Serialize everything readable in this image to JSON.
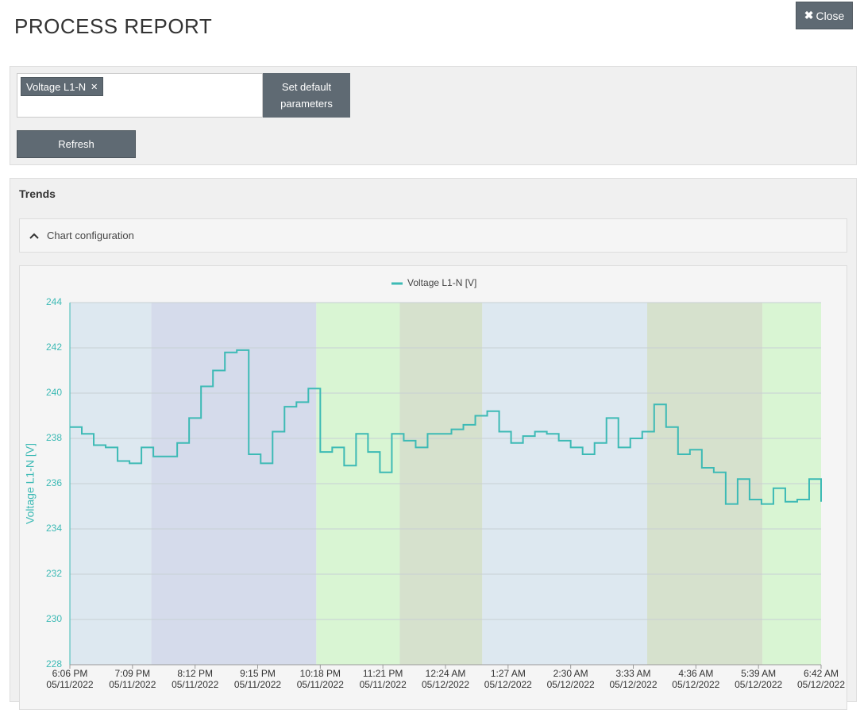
{
  "header": {
    "title": "PROCESS REPORT",
    "close": "Close"
  },
  "filters": {
    "tag": "Voltage L1-N",
    "set_default": "Set default parameters",
    "refresh": "Refresh"
  },
  "trends": {
    "title": "Trends",
    "config": "Chart configuration"
  },
  "chart_data": {
    "type": "line",
    "step": true,
    "x": [
      "2022-05-11T18:06",
      "2022-05-11T18:18",
      "2022-05-11T18:30",
      "2022-05-11T18:42",
      "2022-05-11T18:54",
      "2022-05-11T19:06",
      "2022-05-11T19:18",
      "2022-05-11T19:30",
      "2022-05-11T19:42",
      "2022-05-11T19:54",
      "2022-05-11T20:06",
      "2022-05-11T20:18",
      "2022-05-11T20:30",
      "2022-05-11T20:42",
      "2022-05-11T20:54",
      "2022-05-11T21:06",
      "2022-05-11T21:18",
      "2022-05-11T21:30",
      "2022-05-11T21:42",
      "2022-05-11T21:54",
      "2022-05-11T22:06",
      "2022-05-11T22:18",
      "2022-05-11T22:30",
      "2022-05-11T22:42",
      "2022-05-11T22:54",
      "2022-05-11T23:06",
      "2022-05-11T23:18",
      "2022-05-11T23:30",
      "2022-05-11T23:42",
      "2022-05-11T23:54",
      "2022-05-12T00:06",
      "2022-05-12T00:18",
      "2022-05-12T00:30",
      "2022-05-12T00:42",
      "2022-05-12T00:54",
      "2022-05-12T01:06",
      "2022-05-12T01:18",
      "2022-05-12T01:30",
      "2022-05-12T01:42",
      "2022-05-12T01:54",
      "2022-05-12T02:06",
      "2022-05-12T02:18",
      "2022-05-12T02:30",
      "2022-05-12T02:42",
      "2022-05-12T02:54",
      "2022-05-12T03:06",
      "2022-05-12T03:18",
      "2022-05-12T03:30",
      "2022-05-12T03:42",
      "2022-05-12T03:54",
      "2022-05-12T04:06",
      "2022-05-12T04:18",
      "2022-05-12T04:30",
      "2022-05-12T04:42",
      "2022-05-12T04:54",
      "2022-05-12T05:06",
      "2022-05-12T05:18",
      "2022-05-12T05:30",
      "2022-05-12T05:42",
      "2022-05-12T05:54",
      "2022-05-12T06:06",
      "2022-05-12T06:18",
      "2022-05-12T06:30",
      "2022-05-12T06:42"
    ],
    "series": [
      {
        "name": "Voltage L1-N [V]",
        "color": "#3dbab5",
        "values": [
          238.5,
          238.2,
          237.7,
          237.6,
          237.0,
          236.9,
          237.6,
          237.2,
          237.2,
          237.8,
          238.9,
          240.3,
          241.0,
          241.8,
          241.9,
          237.3,
          236.9,
          238.3,
          239.4,
          239.6,
          240.2,
          237.4,
          237.6,
          236.8,
          238.2,
          237.4,
          236.5,
          238.2,
          237.9,
          237.6,
          238.2,
          238.2,
          238.4,
          238.6,
          239.0,
          239.2,
          238.3,
          237.8,
          238.1,
          238.3,
          238.2,
          237.9,
          237.6,
          237.3,
          237.8,
          238.9,
          237.6,
          238.0,
          238.3,
          239.5,
          238.5,
          237.3,
          237.5,
          236.7,
          236.5,
          235.1,
          236.2,
          235.3,
          235.1,
          235.8,
          235.2,
          235.3,
          236.2,
          235.2
        ]
      }
    ],
    "y_label": "Voltage L1-N [V]",
    "ylim": [
      228,
      244
    ],
    "yticks": [
      228,
      230,
      232,
      234,
      236,
      238,
      240,
      242,
      244
    ],
    "xlim": [
      "2022-05-11T18:06",
      "2022-05-12T06:42"
    ],
    "xticks": [
      {
        "value": "2022-05-11T18:06",
        "label": [
          "6:06 PM",
          "05/11/2022"
        ]
      },
      {
        "value": "2022-05-11T19:09",
        "label": [
          "7:09 PM",
          "05/11/2022"
        ]
      },
      {
        "value": "2022-05-11T20:12",
        "label": [
          "8:12 PM",
          "05/11/2022"
        ]
      },
      {
        "value": "2022-05-11T21:15",
        "label": [
          "9:15 PM",
          "05/11/2022"
        ]
      },
      {
        "value": "2022-05-11T22:18",
        "label": [
          "10:18 PM",
          "05/11/2022"
        ]
      },
      {
        "value": "2022-05-11T23:21",
        "label": [
          "11:21 PM",
          "05/11/2022"
        ]
      },
      {
        "value": "2022-05-12T00:24",
        "label": [
          "12:24 AM",
          "05/12/2022"
        ]
      },
      {
        "value": "2022-05-12T01:27",
        "label": [
          "1:27 AM",
          "05/12/2022"
        ]
      },
      {
        "value": "2022-05-12T02:30",
        "label": [
          "2:30 AM",
          "05/12/2022"
        ]
      },
      {
        "value": "2022-05-12T03:33",
        "label": [
          "3:33 AM",
          "05/12/2022"
        ]
      },
      {
        "value": "2022-05-12T04:36",
        "label": [
          "4:36 AM",
          "05/12/2022"
        ]
      },
      {
        "value": "2022-05-12T05:39",
        "label": [
          "5:39 AM",
          "05/12/2022"
        ]
      },
      {
        "value": "2022-05-12T06:42",
        "label": [
          "6:42 AM",
          "05/12/2022"
        ]
      }
    ],
    "bands": [
      {
        "from": "2022-05-11T18:06",
        "to": "2022-05-11T19:28",
        "color": "#dde8f0"
      },
      {
        "from": "2022-05-11T19:28",
        "to": "2022-05-11T22:14",
        "color": "#d5dbeb"
      },
      {
        "from": "2022-05-11T22:14",
        "to": "2022-05-11T23:38",
        "color": "#d9f5d3"
      },
      {
        "from": "2022-05-11T23:38",
        "to": "2022-05-12T01:01",
        "color": "#d6e1cd"
      },
      {
        "from": "2022-05-12T01:01",
        "to": "2022-05-12T03:47",
        "color": "#dde8f0"
      },
      {
        "from": "2022-05-12T03:47",
        "to": "2022-05-12T05:43",
        "color": "#d6e1cd"
      },
      {
        "from": "2022-05-12T05:43",
        "to": "2022-05-12T06:42",
        "color": "#d9f5d3"
      }
    ],
    "grid": true,
    "legend": "top"
  }
}
